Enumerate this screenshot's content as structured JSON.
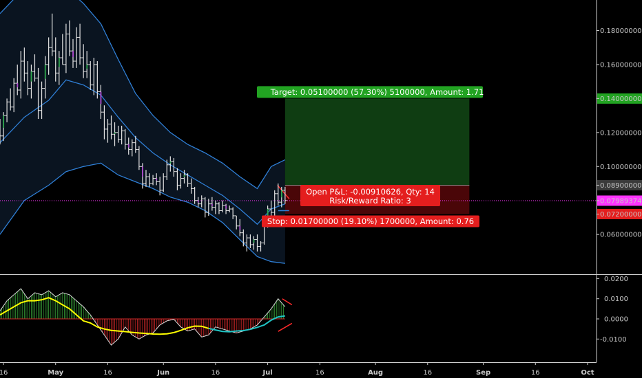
{
  "colors": {
    "background": "#000000",
    "band_fill": "#0a1420",
    "band_line": "#2f7fd6",
    "candle_normal": "#e6e6e6",
    "candle_bull_marker": "#2fa84f",
    "candle_bear_marker": "#b04ad0",
    "target_zone": "#0f3d12",
    "stop_zone": "#4a0608",
    "target_label": "#22a322",
    "stop_label": "#e41e1e",
    "current_price": "#ff33ff",
    "macd_line": "#ffff00",
    "signal_line": "#20c5c5",
    "hist_pos": "#3aa63a",
    "hist_neg": "#d02828",
    "divergence": "#ff2a2a"
  },
  "chart_data": {
    "type": "candlestick",
    "price_axis": {
      "ylim": [
        0.037,
        0.198
      ],
      "ticks": [
        "0.18000000",
        "0.16000000",
        "0.14000000",
        "0.12000000",
        "0.10000000",
        "0.08900000",
        "0.07989374",
        "0.07200000",
        "0.06000000"
      ],
      "tick_values": [
        0.18,
        0.16,
        0.14,
        0.12,
        0.1,
        0.089,
        0.07989374,
        0.072,
        0.06
      ],
      "highlighted": {
        "0.14000000": "target",
        "0.07989374": "current",
        "0.07200000": "stop"
      }
    },
    "osc_axis": {
      "ylim": [
        -0.0215,
        0.0215
      ],
      "ticks": [
        "0.0200",
        "0.0100",
        "0.0000",
        "-0.0100"
      ],
      "tick_values": [
        0.02,
        0.01,
        0.0,
        -0.01
      ]
    },
    "x_axis": {
      "labels": [
        "16",
        "May",
        "16",
        "Jun",
        "16",
        "Jul",
        "16",
        "Aug",
        "16",
        "Sep",
        "16",
        "Oct"
      ],
      "dates": [
        "2018-04-16",
        "2018-05-01",
        "2018-05-16",
        "2018-06-01",
        "2018-06-16",
        "2018-07-01",
        "2018-07-16",
        "2018-08-01",
        "2018-08-16",
        "2018-09-01",
        "2018-09-16",
        "2018-10-01"
      ],
      "range": [
        "2018-04-15",
        "2018-10-02"
      ]
    },
    "candles": [
      {
        "date": "2018-04-15",
        "open": 0.12,
        "high": 0.128,
        "low": 0.113,
        "close": 0.118
      },
      {
        "date": "2018-04-16",
        "open": 0.118,
        "high": 0.132,
        "low": 0.115,
        "close": 0.13
      },
      {
        "date": "2018-04-17",
        "open": 0.13,
        "high": 0.14,
        "low": 0.126,
        "close": 0.138
      },
      {
        "date": "2018-04-18",
        "open": 0.138,
        "high": 0.146,
        "low": 0.133,
        "close": 0.135
      },
      {
        "date": "2018-04-19",
        "open": 0.135,
        "high": 0.152,
        "low": 0.132,
        "close": 0.149
      },
      {
        "date": "2018-04-20",
        "open": 0.149,
        "high": 0.16,
        "low": 0.142,
        "close": 0.145
      },
      {
        "date": "2018-04-21",
        "open": 0.145,
        "high": 0.168,
        "low": 0.14,
        "close": 0.162
      },
      {
        "date": "2018-04-22",
        "open": 0.162,
        "high": 0.17,
        "low": 0.15,
        "close": 0.155
      },
      {
        "date": "2018-04-23",
        "open": 0.155,
        "high": 0.162,
        "low": 0.142,
        "close": 0.146
      },
      {
        "date": "2018-04-24",
        "open": 0.146,
        "high": 0.16,
        "low": 0.14,
        "close": 0.156
      },
      {
        "date": "2018-04-25",
        "open": 0.156,
        "high": 0.166,
        "low": 0.15,
        "close": 0.152
      },
      {
        "date": "2018-04-26",
        "open": 0.152,
        "high": 0.158,
        "low": 0.128,
        "close": 0.133
      },
      {
        "date": "2018-04-27",
        "open": 0.133,
        "high": 0.15,
        "low": 0.128,
        "close": 0.146
      },
      {
        "date": "2018-04-28",
        "open": 0.146,
        "high": 0.165,
        "low": 0.14,
        "close": 0.16
      },
      {
        "date": "2018-04-29",
        "open": 0.16,
        "high": 0.176,
        "low": 0.154,
        "close": 0.17
      },
      {
        "date": "2018-04-30",
        "open": 0.17,
        "high": 0.19,
        "low": 0.165,
        "close": 0.168
      },
      {
        "date": "2018-05-01",
        "open": 0.168,
        "high": 0.176,
        "low": 0.15,
        "close": 0.155
      },
      {
        "date": "2018-05-02",
        "open": 0.155,
        "high": 0.168,
        "low": 0.148,
        "close": 0.164
      },
      {
        "date": "2018-05-03",
        "open": 0.164,
        "high": 0.178,
        "low": 0.16,
        "close": 0.16
      },
      {
        "date": "2018-05-04",
        "open": 0.16,
        "high": 0.184,
        "low": 0.155,
        "close": 0.178
      },
      {
        "date": "2018-05-05",
        "open": 0.178,
        "high": 0.186,
        "low": 0.165,
        "close": 0.168
      },
      {
        "date": "2018-05-06",
        "open": 0.168,
        "high": 0.175,
        "low": 0.158,
        "close": 0.162
      },
      {
        "date": "2018-05-07",
        "open": 0.162,
        "high": 0.182,
        "low": 0.158,
        "close": 0.176
      },
      {
        "date": "2018-05-08",
        "open": 0.176,
        "high": 0.184,
        "low": 0.16,
        "close": 0.164
      },
      {
        "date": "2018-05-09",
        "open": 0.164,
        "high": 0.172,
        "low": 0.152,
        "close": 0.156
      },
      {
        "date": "2018-05-10",
        "open": 0.156,
        "high": 0.168,
        "low": 0.152,
        "close": 0.16
      },
      {
        "date": "2018-05-11",
        "open": 0.16,
        "high": 0.162,
        "low": 0.145,
        "close": 0.148
      },
      {
        "date": "2018-05-12",
        "open": 0.148,
        "high": 0.164,
        "low": 0.142,
        "close": 0.16
      },
      {
        "date": "2018-05-13",
        "open": 0.16,
        "high": 0.162,
        "low": 0.14,
        "close": 0.144
      },
      {
        "date": "2018-05-14",
        "open": 0.144,
        "high": 0.148,
        "low": 0.128,
        "close": 0.132
      },
      {
        "date": "2018-05-15",
        "open": 0.132,
        "high": 0.136,
        "low": 0.116,
        "close": 0.122
      },
      {
        "date": "2018-05-16",
        "open": 0.122,
        "high": 0.128,
        "low": 0.114,
        "close": 0.125
      },
      {
        "date": "2018-05-17",
        "open": 0.125,
        "high": 0.13,
        "low": 0.116,
        "close": 0.119
      },
      {
        "date": "2018-05-18",
        "open": 0.119,
        "high": 0.126,
        "low": 0.112,
        "close": 0.12
      },
      {
        "date": "2018-05-19",
        "open": 0.12,
        "high": 0.124,
        "low": 0.114,
        "close": 0.116
      },
      {
        "date": "2018-05-20",
        "open": 0.116,
        "high": 0.124,
        "low": 0.113,
        "close": 0.121
      },
      {
        "date": "2018-05-21",
        "open": 0.121,
        "high": 0.122,
        "low": 0.11,
        "close": 0.113
      },
      {
        "date": "2018-05-22",
        "open": 0.113,
        "high": 0.117,
        "low": 0.107,
        "close": 0.11
      },
      {
        "date": "2018-05-23",
        "open": 0.11,
        "high": 0.116,
        "low": 0.106,
        "close": 0.114
      },
      {
        "date": "2018-05-24",
        "open": 0.114,
        "high": 0.118,
        "low": 0.108,
        "close": 0.11
      },
      {
        "date": "2018-05-25",
        "open": 0.11,
        "high": 0.112,
        "low": 0.098,
        "close": 0.1
      },
      {
        "date": "2018-05-26",
        "open": 0.1,
        "high": 0.102,
        "low": 0.087,
        "close": 0.09
      },
      {
        "date": "2018-05-27",
        "open": 0.09,
        "high": 0.098,
        "low": 0.088,
        "close": 0.094
      },
      {
        "date": "2018-05-28",
        "open": 0.094,
        "high": 0.096,
        "low": 0.088,
        "close": 0.09
      },
      {
        "date": "2018-05-29",
        "open": 0.09,
        "high": 0.095,
        "low": 0.089,
        "close": 0.093
      },
      {
        "date": "2018-05-30",
        "open": 0.093,
        "high": 0.096,
        "low": 0.089,
        "close": 0.091
      },
      {
        "date": "2018-05-31",
        "open": 0.091,
        "high": 0.094,
        "low": 0.083,
        "close": 0.086
      },
      {
        "date": "2018-06-01",
        "open": 0.086,
        "high": 0.096,
        "low": 0.085,
        "close": 0.094
      },
      {
        "date": "2018-06-02",
        "open": 0.094,
        "high": 0.104,
        "low": 0.092,
        "close": 0.101
      },
      {
        "date": "2018-06-03",
        "open": 0.101,
        "high": 0.106,
        "low": 0.097,
        "close": 0.103
      },
      {
        "date": "2018-06-04",
        "open": 0.103,
        "high": 0.105,
        "low": 0.094,
        "close": 0.097
      },
      {
        "date": "2018-06-05",
        "open": 0.097,
        "high": 0.099,
        "low": 0.086,
        "close": 0.089
      },
      {
        "date": "2018-06-06",
        "open": 0.089,
        "high": 0.096,
        "low": 0.087,
        "close": 0.093
      },
      {
        "date": "2018-06-07",
        "open": 0.093,
        "high": 0.098,
        "low": 0.09,
        "close": 0.095
      },
      {
        "date": "2018-06-08",
        "open": 0.095,
        "high": 0.096,
        "low": 0.088,
        "close": 0.09
      },
      {
        "date": "2018-06-09",
        "open": 0.09,
        "high": 0.093,
        "low": 0.084,
        "close": 0.087
      },
      {
        "date": "2018-06-10",
        "open": 0.087,
        "high": 0.088,
        "low": 0.078,
        "close": 0.08
      },
      {
        "date": "2018-06-11",
        "open": 0.08,
        "high": 0.082,
        "low": 0.076,
        "close": 0.078
      },
      {
        "date": "2018-06-12",
        "open": 0.078,
        "high": 0.083,
        "low": 0.076,
        "close": 0.081
      },
      {
        "date": "2018-06-13",
        "open": 0.081,
        "high": 0.082,
        "low": 0.07,
        "close": 0.073
      },
      {
        "date": "2018-06-14",
        "open": 0.073,
        "high": 0.081,
        "low": 0.071,
        "close": 0.078
      },
      {
        "date": "2018-06-15",
        "open": 0.078,
        "high": 0.082,
        "low": 0.074,
        "close": 0.076
      },
      {
        "date": "2018-06-16",
        "open": 0.076,
        "high": 0.08,
        "low": 0.072,
        "close": 0.078
      },
      {
        "date": "2018-06-17",
        "open": 0.078,
        "high": 0.079,
        "low": 0.072,
        "close": 0.074
      },
      {
        "date": "2018-06-18",
        "open": 0.074,
        "high": 0.08,
        "low": 0.073,
        "close": 0.077
      },
      {
        "date": "2018-06-19",
        "open": 0.077,
        "high": 0.078,
        "low": 0.072,
        "close": 0.074
      },
      {
        "date": "2018-06-20",
        "open": 0.074,
        "high": 0.077,
        "low": 0.073,
        "close": 0.075
      },
      {
        "date": "2018-06-21",
        "open": 0.075,
        "high": 0.076,
        "low": 0.069,
        "close": 0.071
      },
      {
        "date": "2018-06-22",
        "open": 0.071,
        "high": 0.071,
        "low": 0.063,
        "close": 0.065
      },
      {
        "date": "2018-06-23",
        "open": 0.065,
        "high": 0.069,
        "low": 0.059,
        "close": 0.061
      },
      {
        "date": "2018-06-24",
        "open": 0.061,
        "high": 0.063,
        "low": 0.053,
        "close": 0.055
      },
      {
        "date": "2018-06-25",
        "open": 0.055,
        "high": 0.06,
        "low": 0.05,
        "close": 0.058
      },
      {
        "date": "2018-06-26",
        "open": 0.058,
        "high": 0.06,
        "low": 0.052,
        "close": 0.054
      },
      {
        "date": "2018-06-27",
        "open": 0.054,
        "high": 0.059,
        "low": 0.051,
        "close": 0.057
      },
      {
        "date": "2018-06-28",
        "open": 0.057,
        "high": 0.06,
        "low": 0.05,
        "close": 0.053
      },
      {
        "date": "2018-06-29",
        "open": 0.053,
        "high": 0.056,
        "low": 0.05,
        "close": 0.055
      },
      {
        "date": "2018-06-30",
        "open": 0.055,
        "high": 0.068,
        "low": 0.054,
        "close": 0.066
      },
      {
        "date": "2018-07-01",
        "open": 0.066,
        "high": 0.077,
        "low": 0.064,
        "close": 0.075
      },
      {
        "date": "2018-07-02",
        "open": 0.075,
        "high": 0.08,
        "low": 0.071,
        "close": 0.073
      },
      {
        "date": "2018-07-03",
        "open": 0.073,
        "high": 0.086,
        "low": 0.071,
        "close": 0.084
      },
      {
        "date": "2018-07-04",
        "open": 0.084,
        "high": 0.09,
        "low": 0.077,
        "close": 0.079
      },
      {
        "date": "2018-07-05",
        "open": 0.079,
        "high": 0.088,
        "low": 0.076,
        "close": 0.086
      },
      {
        "date": "2018-07-06",
        "open": 0.086,
        "high": 0.088,
        "low": 0.078,
        "close": 0.08
      }
    ],
    "bands": {
      "dates": [
        "2018-04-15",
        "2018-04-22",
        "2018-04-29",
        "2018-05-04",
        "2018-05-09",
        "2018-05-14",
        "2018-05-19",
        "2018-05-24",
        "2018-05-29",
        "2018-06-03",
        "2018-06-08",
        "2018-06-13",
        "2018-06-18",
        "2018-06-23",
        "2018-06-28",
        "2018-07-02",
        "2018-07-06"
      ],
      "upper": [
        0.19,
        0.205,
        0.207,
        0.205,
        0.196,
        0.184,
        0.163,
        0.143,
        0.13,
        0.12,
        0.113,
        0.108,
        0.102,
        0.094,
        0.087,
        0.1,
        0.104
      ],
      "middle": [
        0.114,
        0.129,
        0.139,
        0.151,
        0.148,
        0.142,
        0.129,
        0.117,
        0.108,
        0.101,
        0.095,
        0.089,
        0.083,
        0.075,
        0.066,
        0.075,
        0.078
      ],
      "lower": [
        0.06,
        0.08,
        0.089,
        0.097,
        0.1,
        0.102,
        0.095,
        0.091,
        0.087,
        0.082,
        0.079,
        0.074,
        0.067,
        0.057,
        0.047,
        0.044,
        0.043
      ]
    },
    "position": {
      "start": "2018-07-06",
      "end": "2018-08-28",
      "entry": 0.089,
      "target": 0.14,
      "stop": 0.072,
      "current": 0.07989374
    },
    "labels": {
      "target": "Target: 0.05100000 (57.30%) 5100000, Amount: 1.71",
      "pnl_line1": "Open P&L: -0.00910626, Qty: 14",
      "pnl_line2": "Risk/Reward Ratio: 3",
      "stop": "Stop: 0.01700000 (19.10%) 1700000, Amount: 0.76"
    },
    "macd": {
      "dates": [
        "2018-04-15",
        "2018-04-17",
        "2018-04-19",
        "2018-04-21",
        "2018-04-23",
        "2018-04-25",
        "2018-04-27",
        "2018-04-29",
        "2018-05-01",
        "2018-05-03",
        "2018-05-05",
        "2018-05-07",
        "2018-05-09",
        "2018-05-11",
        "2018-05-13",
        "2018-05-15",
        "2018-05-17",
        "2018-05-19",
        "2018-05-21",
        "2018-05-23",
        "2018-05-25",
        "2018-05-27",
        "2018-05-29",
        "2018-05-31",
        "2018-06-02",
        "2018-06-04",
        "2018-06-06",
        "2018-06-08",
        "2018-06-10",
        "2018-06-12",
        "2018-06-14",
        "2018-06-16",
        "2018-06-18",
        "2018-06-20",
        "2018-06-22",
        "2018-06-24",
        "2018-06-26",
        "2018-06-28",
        "2018-06-30",
        "2018-07-02",
        "2018-07-04",
        "2018-07-06"
      ],
      "macd": [
        0.004,
        0.009,
        0.012,
        0.015,
        0.01,
        0.013,
        0.012,
        0.014,
        0.011,
        0.013,
        0.012,
        0.009,
        0.006,
        0.002,
        -0.003,
        -0.008,
        -0.013,
        -0.01,
        -0.004,
        -0.008,
        -0.01,
        -0.008,
        -0.007,
        -0.003,
        -0.001,
        -0.0002,
        -0.004,
        -0.006,
        -0.005,
        -0.009,
        -0.008,
        -0.004,
        -0.005,
        -0.006,
        -0.007,
        -0.006,
        -0.005,
        -0.003,
        0.001,
        0.005,
        0.01,
        0.006
      ],
      "signal": [
        0.002,
        0.004,
        0.006,
        0.008,
        0.009,
        0.009,
        0.0095,
        0.0105,
        0.009,
        0.007,
        0.005,
        0.002,
        -0.001,
        -0.002,
        -0.004,
        -0.005,
        -0.0057,
        -0.006,
        -0.0063,
        -0.0067,
        -0.007,
        -0.0072,
        -0.0075,
        -0.0076,
        -0.0074,
        -0.0068,
        -0.0057,
        -0.0044,
        -0.0036,
        -0.0037,
        -0.0047,
        -0.0055,
        -0.0062,
        -0.0064,
        -0.006,
        -0.0058,
        -0.0052,
        -0.0042,
        -0.003,
        -0.0006,
        0.001,
        0.0015
      ]
    }
  }
}
